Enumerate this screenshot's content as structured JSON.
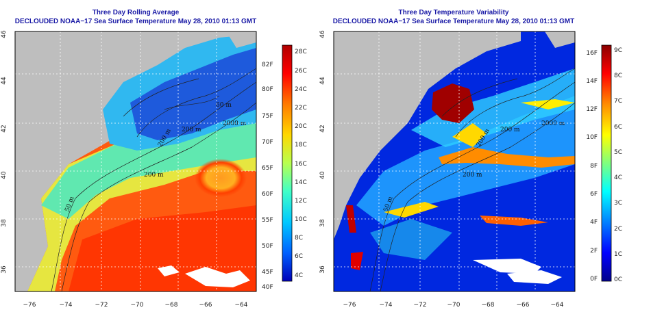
{
  "panels": [
    {
      "id": "left",
      "title": "Three Day Rolling Average",
      "subtitle": "DECLOUDED NOAA−17 Sea Surface Temperature May 28, 2010 01:13 GMT",
      "lat_ticks": [
        "46",
        "44",
        "42",
        "40",
        "38",
        "36"
      ],
      "lon_ticks": [
        "−76",
        "−74",
        "−72",
        "−70",
        "−68",
        "−66",
        "−64"
      ],
      "colorbar_left": [
        "28C",
        "26C",
        "24C",
        "22C",
        "20C",
        "18C",
        "16C",
        "14C",
        "12C",
        "10C",
        "8C",
        "6C",
        "4C"
      ],
      "colorbar_right": [
        "82F",
        "80F",
        "75F",
        "70F",
        "65F",
        "60F",
        "55F",
        "50F",
        "45F",
        "40F"
      ],
      "contour_labels": [
        "200 m",
        "200 m",
        "2000 m",
        "50 m",
        "200 m",
        "60 m"
      ],
      "legend_colors": [
        "#b00000",
        "#ff0000",
        "#ff7a00",
        "#ffd800",
        "#b8ff50",
        "#40ffc8",
        "#00c8ff",
        "#0060ff",
        "#0000b8"
      ]
    },
    {
      "id": "right",
      "title": "Three Day Temperature Variability",
      "subtitle": "DECLOUDED NOAA−17 Sea Surface Temperature May 28, 2010 01:13 GMT",
      "lat_ticks": [
        "46",
        "44",
        "42",
        "40",
        "38",
        "36"
      ],
      "lon_ticks": [
        "−76",
        "−74",
        "−72",
        "−70",
        "−68",
        "−66",
        "−64"
      ],
      "colorbar_left": [
        "16F",
        "14F",
        "12F",
        "10F",
        "8F",
        "6F",
        "4F",
        "2F",
        "0F"
      ],
      "colorbar_right": [
        "9C",
        "8C",
        "7C",
        "6C",
        "5C",
        "4C",
        "3C",
        "2C",
        "1C",
        "0C"
      ],
      "contour_labels": [
        "200 m",
        "200 m",
        "50 m",
        "200 m",
        "2000 m"
      ],
      "legend_colors": [
        "#8b0000",
        "#ff0000",
        "#ff8c00",
        "#ffff00",
        "#7fff7f",
        "#00ffff",
        "#0080ff",
        "#0000ff",
        "#00008b"
      ]
    }
  ]
}
